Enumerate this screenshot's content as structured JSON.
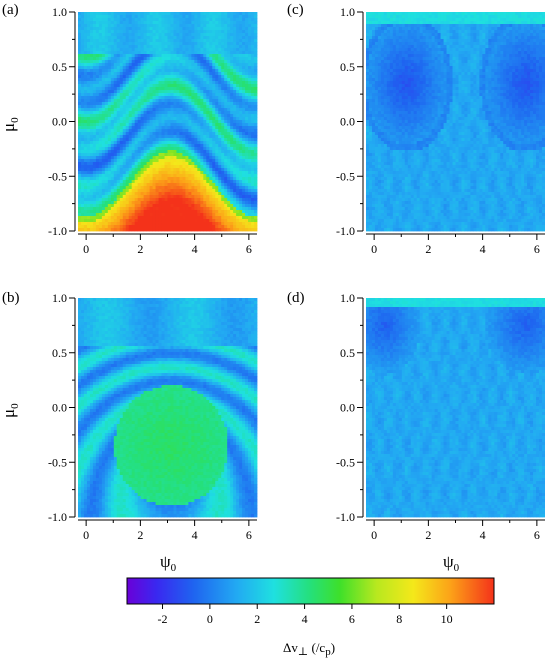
{
  "chart_data": [
    {
      "type": "heatmap",
      "panel": "(a)",
      "xlim": [
        -0.3,
        6.3
      ],
      "ylim": [
        -1.0,
        1.0
      ],
      "xticks": [
        "0",
        "2",
        "4",
        "6"
      ],
      "yticks": [
        "1.0",
        "0.5",
        "0.0",
        "-0.5",
        "-1.0"
      ],
      "description_values": {
        "upper_band_level": 1.5,
        "lower_region_peak": 11.0
      }
    },
    {
      "type": "heatmap",
      "panel": "(b)",
      "xlim": [
        -0.3,
        6.3
      ],
      "ylim": [
        -1.0,
        1.0
      ],
      "xticks": [
        "0",
        "2",
        "4",
        "6"
      ],
      "yticks": [
        "1.0",
        "0.5",
        "0.0",
        "-0.5",
        "-1.0"
      ],
      "description_values": {
        "center_island_level": 4.5
      }
    },
    {
      "type": "heatmap",
      "panel": "(c)",
      "xlim": [
        -0.3,
        6.3
      ],
      "ylim": [
        -1.0,
        1.0
      ],
      "xticks": [
        "0",
        "2",
        "4",
        "6"
      ],
      "yticks": [
        "1.0",
        "0.5",
        "0.0",
        "-0.5",
        "-1.0"
      ],
      "description_values": {
        "lobe_min": -1.5,
        "background": 1.0
      }
    },
    {
      "type": "heatmap",
      "panel": "(d)",
      "xlim": [
        -0.3,
        6.3
      ],
      "ylim": [
        -1.0,
        1.0
      ],
      "xticks": [
        "0",
        "2",
        "4",
        "6"
      ],
      "yticks": [
        "1.0",
        "0.5",
        "0.0",
        "-0.5",
        "-1.0"
      ],
      "description_values": {
        "lobe_min": -0.8,
        "background": 1.0
      }
    }
  ],
  "labels": {
    "panel_a": "(a)",
    "panel_b": "(b)",
    "panel_c": "(c)",
    "panel_d": "(d)",
    "y_axis_main": "μ",
    "y_axis_sub": "0",
    "x_axis_main": "ψ",
    "x_axis_sub": "0"
  },
  "colorbar": {
    "range": [
      -3.5,
      12.0
    ],
    "ticks": [
      "-2",
      "0",
      "2",
      "4",
      "6",
      "8",
      "10"
    ],
    "tick_values": [
      -2,
      0,
      2,
      4,
      6,
      8,
      10
    ],
    "title_main": "Δv",
    "title_perp": "⊥",
    "title_rest": " (/c",
    "title_sub": "p",
    "title_close": ")"
  }
}
